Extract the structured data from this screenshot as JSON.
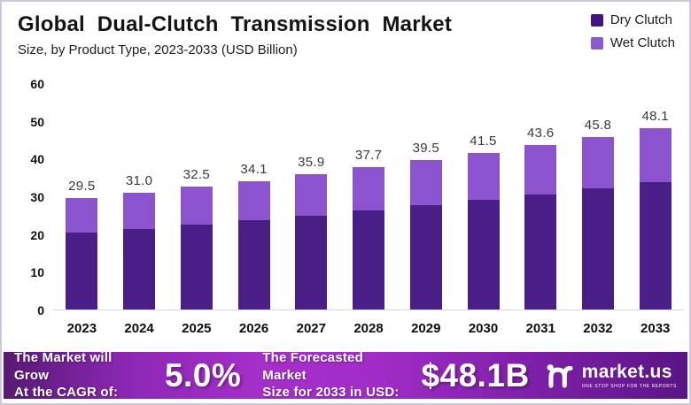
{
  "header": {
    "title": "Global Dual-Clutch Transmission Market",
    "subtitle": "Size, by Product Type, 2023-2033 (USD Billion)"
  },
  "colors": {
    "dry_clutch": "#4a1e87",
    "wet_clutch": "#8b54ce",
    "legend_dry": "#441580",
    "legend_wet": "#8a5ad0",
    "banner_gradient": [
      "#571a74",
      "#a62fca",
      "#5a1484"
    ]
  },
  "chart_data": {
    "type": "bar",
    "stacked": true,
    "title": "Global Dual-Clutch Transmission Market Size, by Product Type, 2023-2033 (USD Billion)",
    "categories": [
      "2023",
      "2024",
      "2025",
      "2026",
      "2027",
      "2028",
      "2029",
      "2030",
      "2031",
      "2032",
      "2033"
    ],
    "series": [
      {
        "name": "Dry Clutch",
        "color": "#4a1e87",
        "values": [
          20.3,
          21.3,
          22.4,
          23.6,
          24.9,
          26.2,
          27.6,
          29.0,
          30.5,
          32.1,
          33.8
        ]
      },
      {
        "name": "Wet Clutch",
        "color": "#8b54ce",
        "values": [
          9.2,
          9.7,
          10.1,
          10.5,
          11.0,
          11.5,
          11.9,
          12.5,
          13.1,
          13.7,
          14.3
        ]
      }
    ],
    "totals": [
      "29.5",
      "31.0",
      "32.5",
      "34.1",
      "35.9",
      "37.7",
      "39.5",
      "41.5",
      "43.6",
      "45.8",
      "48.1"
    ],
    "yticks": [
      0,
      10,
      20,
      30,
      40,
      50,
      60
    ],
    "ylim": [
      0,
      60
    ],
    "ylabel": "",
    "xlabel": "",
    "grid": false,
    "legend_position": "top-right"
  },
  "legend": {
    "items": [
      {
        "label": "Dry Clutch",
        "color": "#441580"
      },
      {
        "label": "Wet Clutch",
        "color": "#8a5ad0"
      }
    ]
  },
  "banner": {
    "cagr_label_line1": "The Market will Grow",
    "cagr_label_line2": "At the CAGR of:",
    "cagr_value": "5.0%",
    "forecast_label_line1": "The Forecasted Market",
    "forecast_label_line2": "Size for 2033 in USD:",
    "forecast_value": "$48.1B",
    "logo_text": "market.us",
    "logo_tagline": "ONE STOP SHOP FOR THE REPORTS"
  }
}
